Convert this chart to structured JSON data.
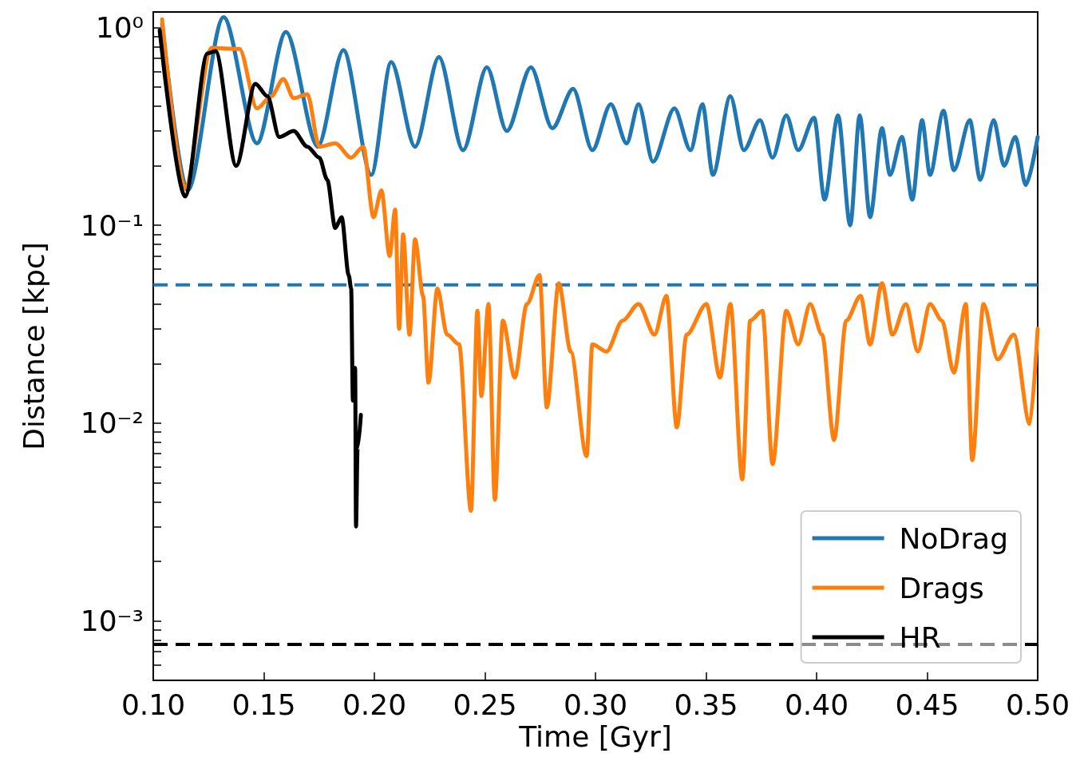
{
  "chart_data": {
    "type": "line",
    "xlabel": "Time [Gyr]",
    "ylabel": "Distance [kpc]",
    "log": "y",
    "grid": false,
    "legend": "bottom right",
    "marker": "none",
    "line_style": "solid",
    "xlim": [
      0.1,
      0.5
    ],
    "xticks": [
      {
        "value": 0.1,
        "label": "0.10"
      },
      {
        "value": 0.15,
        "label": "0.15"
      },
      {
        "value": 0.2,
        "label": "0.20"
      },
      {
        "value": 0.25,
        "label": "0.25"
      },
      {
        "value": 0.3,
        "label": "0.30"
      },
      {
        "value": 0.35,
        "label": "0.35"
      },
      {
        "value": 0.4,
        "label": "0.40"
      },
      {
        "value": 0.45,
        "label": "0.45"
      },
      {
        "value": 0.5,
        "label": "0.50"
      }
    ],
    "ylim": [
      0.0005,
      1.2
    ],
    "yticks": [
      {
        "value": 0.0005,
        "label": null
      },
      {
        "value": 0.0006,
        "label": null
      },
      {
        "value": 0.0007,
        "label": null
      },
      {
        "value": 0.0008,
        "label": null
      },
      {
        "value": 0.0009,
        "label": null
      },
      {
        "value": 0.001,
        "label": "10⁻³"
      },
      {
        "value": 0.002,
        "label": null
      },
      {
        "value": 0.003,
        "label": null
      },
      {
        "value": 0.004,
        "label": null
      },
      {
        "value": 0.005,
        "label": null
      },
      {
        "value": 0.006,
        "label": null
      },
      {
        "value": 0.007,
        "label": null
      },
      {
        "value": 0.008,
        "label": null
      },
      {
        "value": 0.009,
        "label": null
      },
      {
        "value": 0.01,
        "label": "10⁻²"
      },
      {
        "value": 0.02,
        "label": null
      },
      {
        "value": 0.03,
        "label": null
      },
      {
        "value": 0.04,
        "label": null
      },
      {
        "value": 0.05,
        "label": null
      },
      {
        "value": 0.06,
        "label": null
      },
      {
        "value": 0.07,
        "label": null
      },
      {
        "value": 0.08,
        "label": null
      },
      {
        "value": 0.09,
        "label": null
      },
      {
        "value": 0.1,
        "label": "10⁻¹"
      },
      {
        "value": 0.2,
        "label": null
      },
      {
        "value": 0.3,
        "label": null
      },
      {
        "value": 0.4,
        "label": null
      },
      {
        "value": 0.5,
        "label": null
      },
      {
        "value": 0.6,
        "label": null
      },
      {
        "value": 0.7,
        "label": null
      },
      {
        "value": 0.8,
        "label": null
      },
      {
        "value": 0.9,
        "label": null
      },
      {
        "value": 1,
        "label": "10⁰"
      }
    ],
    "ref_lines": [
      {
        "axis": "y",
        "value": 0.05,
        "color": "#1f77b4",
        "line_style": "dashed"
      },
      {
        "axis": "y",
        "value": 0.00076,
        "color": "#000000",
        "line_style": "dashed"
      }
    ],
    "series": [
      {
        "name": "NoDrag",
        "color": "#1f77b4",
        "x": [
          0.104,
          0.1155,
          0.1318,
          0.1469,
          0.16,
          0.1744,
          0.186,
          0.1986,
          0.2076,
          0.2184,
          0.2292,
          0.2401,
          0.2509,
          0.2599,
          0.2708,
          0.2805,
          0.2899,
          0.2986,
          0.3069,
          0.3141,
          0.3195,
          0.326,
          0.3357,
          0.343,
          0.3484,
          0.3531,
          0.361,
          0.3671,
          0.3744,
          0.3801,
          0.3863,
          0.3917,
          0.3989,
          0.4036,
          0.4097,
          0.4152,
          0.4195,
          0.4242,
          0.4296,
          0.4332,
          0.4386,
          0.4433,
          0.4477,
          0.4513,
          0.4574,
          0.4621,
          0.4693,
          0.474,
          0.4801,
          0.4848,
          0.4899,
          0.4946,
          0.5
        ],
        "values": [
          1.05,
          0.15,
          1.13,
          0.26,
          0.95,
          0.25,
          0.77,
          0.18,
          0.67,
          0.25,
          0.71,
          0.24,
          0.63,
          0.3,
          0.63,
          0.31,
          0.49,
          0.24,
          0.41,
          0.26,
          0.41,
          0.21,
          0.39,
          0.24,
          0.41,
          0.18,
          0.45,
          0.24,
          0.34,
          0.22,
          0.36,
          0.24,
          0.35,
          0.135,
          0.36,
          0.1,
          0.36,
          0.11,
          0.31,
          0.18,
          0.28,
          0.135,
          0.34,
          0.18,
          0.38,
          0.19,
          0.34,
          0.17,
          0.34,
          0.2,
          0.28,
          0.16,
          0.28
        ]
      },
      {
        "name": "Drags",
        "color": "#ff7f0e",
        "x": [
          0.104,
          0.1144,
          0.1264,
          0.139,
          0.1469,
          0.1534,
          0.1588,
          0.1635,
          0.1697,
          0.1751,
          0.1823,
          0.1895,
          0.195,
          0.1996,
          0.2032,
          0.2069,
          0.2094,
          0.2112,
          0.213,
          0.2159,
          0.2184,
          0.222,
          0.2245,
          0.2285,
          0.2329,
          0.2383,
          0.2437,
          0.2466,
          0.2484,
          0.2516,
          0.2545,
          0.2581,
          0.2635,
          0.269,
          0.2747,
          0.278,
          0.2834,
          0.2888,
          0.296,
          0.2986,
          0.305,
          0.3123,
          0.3195,
          0.3267,
          0.3321,
          0.3368,
          0.3412,
          0.3502,
          0.3563,
          0.361,
          0.3664,
          0.37,
          0.3755,
          0.3801,
          0.3863,
          0.3917,
          0.3971,
          0.4025,
          0.4079,
          0.4134,
          0.4199,
          0.4242,
          0.4296,
          0.4343,
          0.4404,
          0.4458,
          0.4513,
          0.4567,
          0.4621,
          0.4675,
          0.4704,
          0.4755,
          0.4819,
          0.4892,
          0.4964,
          0.5
        ],
        "values": [
          1.1,
          0.155,
          0.79,
          0.78,
          0.39,
          0.45,
          0.55,
          0.44,
          0.46,
          0.25,
          0.26,
          0.22,
          0.25,
          0.11,
          0.15,
          0.07,
          0.12,
          0.03,
          0.09,
          0.028,
          0.085,
          0.044,
          0.016,
          0.048,
          0.028,
          0.025,
          0.0036,
          0.037,
          0.0137,
          0.04,
          0.0041,
          0.033,
          0.017,
          0.04,
          0.056,
          0.012,
          0.051,
          0.023,
          0.0068,
          0.025,
          0.023,
          0.033,
          0.04,
          0.028,
          0.044,
          0.0095,
          0.028,
          0.04,
          0.017,
          0.04,
          0.0052,
          0.033,
          0.037,
          0.0062,
          0.037,
          0.025,
          0.04,
          0.028,
          0.0082,
          0.033,
          0.044,
          0.025,
          0.051,
          0.028,
          0.04,
          0.023,
          0.04,
          0.033,
          0.018,
          0.04,
          0.0065,
          0.04,
          0.021,
          0.028,
          0.0099,
          0.03
        ]
      },
      {
        "name": "HR",
        "color": "#000000",
        "x": [
          0.1029,
          0.1144,
          0.1245,
          0.1282,
          0.1375,
          0.1462,
          0.1516,
          0.157,
          0.1635,
          0.1697,
          0.1751,
          0.1787,
          0.1823,
          0.1852,
          0.1884,
          0.1895,
          0.1903,
          0.1913,
          0.1917,
          0.1924,
          0.1939
        ],
        "values": [
          0.97,
          0.14,
          0.74,
          0.76,
          0.2,
          0.52,
          0.45,
          0.28,
          0.3,
          0.25,
          0.22,
          0.17,
          0.097,
          0.11,
          0.056,
          0.048,
          0.013,
          0.019,
          0.003,
          0.0075,
          0.011
        ]
      }
    ]
  }
}
